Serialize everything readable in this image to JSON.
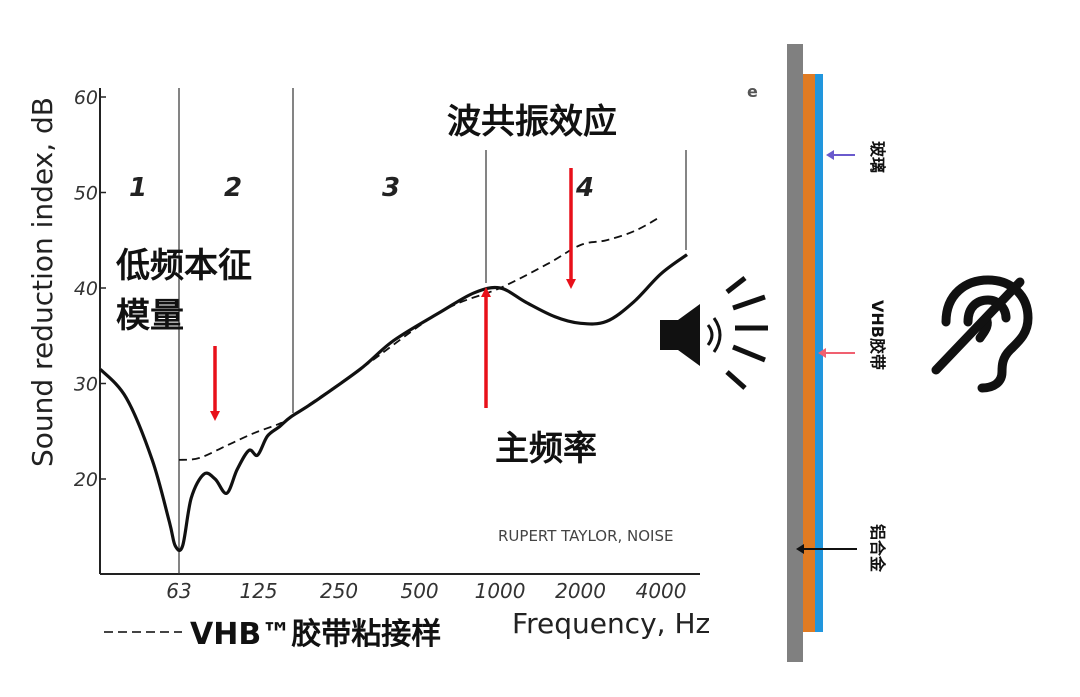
{
  "chart_data": {
    "type": "line",
    "xlabel": "Frequency, Hz",
    "ylabel": "Sound reduction index, dB",
    "x_scale": "log",
    "x_ticks": [
      "63",
      "125",
      "250",
      "500",
      "1000",
      "2000",
      "4000"
    ],
    "y_ticks": [
      "20",
      "30",
      "40",
      "50",
      "60"
    ],
    "ylim": [
      10,
      60
    ],
    "regions": [
      "1",
      "2",
      "3",
      "4"
    ],
    "series": [
      {
        "name": "",
        "style": "solid",
        "points": [
          [
            32,
            31.5
          ],
          [
            40,
            28.5
          ],
          [
            50,
            22
          ],
          [
            58,
            15.5
          ],
          [
            61,
            13
          ],
          [
            65,
            13
          ],
          [
            70,
            18
          ],
          [
            78,
            20.5
          ],
          [
            86,
            20
          ],
          [
            95,
            18.5
          ],
          [
            104,
            21
          ],
          [
            115,
            23
          ],
          [
            124,
            22.5
          ],
          [
            135,
            24.5
          ],
          [
            150,
            25.5
          ],
          [
            165,
            26.5
          ],
          [
            200,
            28
          ],
          [
            300,
            31.5
          ],
          [
            400,
            34.5
          ],
          [
            600,
            37.5
          ],
          [
            800,
            39.5
          ],
          [
            1000,
            40
          ],
          [
            1250,
            38.5
          ],
          [
            1600,
            37
          ],
          [
            2000,
            36.3
          ],
          [
            2500,
            36.5
          ],
          [
            3150,
            38.5
          ],
          [
            4000,
            41.5
          ],
          [
            5000,
            43.5
          ]
        ]
      },
      {
        "name": "VHB™胶带粘接样",
        "style": "dashed",
        "points": [
          [
            63,
            22
          ],
          [
            75,
            22.2
          ],
          [
            95,
            23.5
          ],
          [
            120,
            24.8
          ],
          [
            150,
            25.8
          ],
          [
            165,
            26.5
          ],
          [
            300,
            31.5
          ],
          [
            600,
            37.5
          ],
          [
            1000,
            40
          ],
          [
            1500,
            42.5
          ],
          [
            2000,
            44.5
          ],
          [
            2500,
            45
          ],
          [
            3200,
            46
          ],
          [
            4000,
            47.5
          ]
        ]
      }
    ]
  },
  "annotations": {
    "coincidence": "波共振效应",
    "low_freq": [
      "低频本征",
      "模量"
    ],
    "main_freq": "主频率",
    "credit": "RUPERT TAYLOR, NOISE",
    "legend_label": "VHB™胶带粘接样",
    "stray_mark": "e"
  },
  "colors": {
    "arrow": "#e8101a",
    "glass": "#2196dd",
    "tape": "#e07b22",
    "aluminum": "#808080",
    "glass_arrow": "#6a5acd",
    "tape_arrow": "#f06070"
  },
  "diagram": {
    "layers": [
      "玻璃",
      "VHB胶带",
      "铝合金"
    ],
    "icons": [
      "speaker-icon",
      "deaf-ear-icon"
    ]
  }
}
